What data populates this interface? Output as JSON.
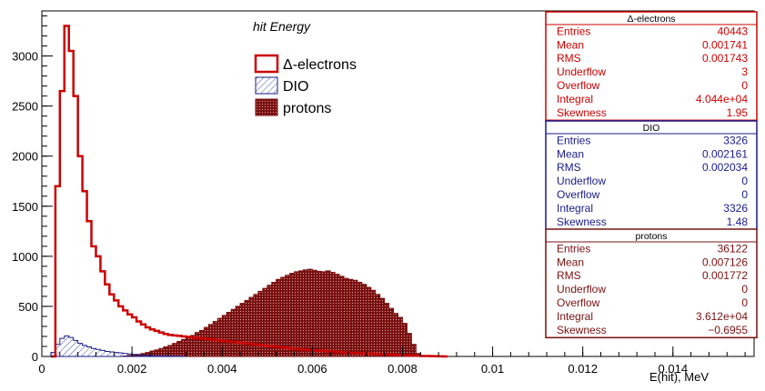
{
  "chart_data": {
    "type": "histogram",
    "title": "hit Energy",
    "xlabel": "E(hit), MeV",
    "ylabel": "",
    "xlim": [
      0,
      0.0158
    ],
    "ylim": [
      0,
      3450
    ],
    "x_ticks": [
      0,
      0.002,
      0.004,
      0.006,
      0.008,
      0.01,
      0.012,
      0.014
    ],
    "x_tick_labels": [
      "0",
      "0.002",
      "0.004",
      "0.006",
      "0.008",
      "0.01",
      "0.012",
      "0.014"
    ],
    "y_ticks": [
      0,
      500,
      1000,
      1500,
      2000,
      2500,
      3000
    ],
    "y_tick_labels": [
      "0",
      "500",
      "1000",
      "1500",
      "2000",
      "2500",
      "3000"
    ],
    "grid": false,
    "legend_position": "top-center",
    "series": [
      {
        "name": "Δ-electrons",
        "color": "#cc0000",
        "style": "outline",
        "bin_edges_start": 0.0002,
        "bin_width": 0.0001,
        "values": [
          0,
          1700,
          2650,
          3300,
          3050,
          2600,
          2000,
          1650,
          1350,
          1100,
          1000,
          850,
          720,
          620,
          560,
          500,
          460,
          420,
          390,
          350,
          320,
          290,
          270,
          255,
          240,
          225,
          215,
          210,
          205,
          200,
          195,
          190,
          185,
          180,
          175,
          170,
          165,
          160,
          155,
          150,
          145,
          140,
          135,
          130,
          125,
          120,
          115,
          110,
          105,
          100,
          95,
          90,
          85,
          80,
          76,
          72,
          68,
          64,
          60,
          57,
          54,
          51,
          48,
          45,
          42,
          40,
          37,
          35,
          33,
          31,
          29,
          27,
          25,
          23,
          21,
          19,
          17,
          15,
          13,
          11,
          9,
          7,
          5,
          4,
          3,
          2,
          1,
          0
        ]
      },
      {
        "name": "DIO",
        "color": "#1a1a8a",
        "style": "hatched",
        "bin_edges_start": 0.0002,
        "bin_width": 0.0001,
        "values": [
          40,
          120,
          180,
          205,
          190,
          160,
          130,
          110,
          95,
          80,
          70,
          60,
          50,
          45,
          40,
          35,
          30,
          25,
          20,
          15,
          12,
          10,
          8,
          6,
          5,
          4,
          3,
          2,
          1,
          0
        ]
      },
      {
        "name": "protons",
        "color": "#7a1010",
        "style": "filled-dotted",
        "bin_edges_start": 0.0018,
        "bin_width": 0.0001,
        "values": [
          5,
          10,
          15,
          20,
          30,
          40,
          55,
          65,
          80,
          95,
          110,
          130,
          150,
          170,
          190,
          210,
          240,
          260,
          290,
          320,
          350,
          380,
          410,
          440,
          470,
          500,
          530,
          560,
          590,
          620,
          650,
          680,
          710,
          740,
          770,
          790,
          810,
          830,
          845,
          855,
          865,
          870,
          860,
          850,
          845,
          855,
          840,
          820,
          800,
          780,
          770,
          760,
          740,
          720,
          690,
          660,
          620,
          580,
          530,
          480,
          430,
          390,
          330,
          230,
          120,
          30,
          0
        ]
      }
    ],
    "stats_boxes": [
      {
        "title": "Δ-electrons",
        "color": "#cc0000",
        "rows": [
          {
            "label": "Entries",
            "value": "40443"
          },
          {
            "label": "Mean",
            "value": "0.001741"
          },
          {
            "label": "RMS",
            "value": "0.001743"
          },
          {
            "label": "Underflow",
            "value": "3"
          },
          {
            "label": "Overflow",
            "value": "0"
          },
          {
            "label": "Integral",
            "value": "4.044e+04"
          },
          {
            "label": "Skewness",
            "value": "1.95"
          }
        ]
      },
      {
        "title": "DIO",
        "color": "#1a1a8a",
        "rows": [
          {
            "label": "Entries",
            "value": "3326"
          },
          {
            "label": "Mean",
            "value": "0.002161"
          },
          {
            "label": "RMS",
            "value": "0.002034"
          },
          {
            "label": "Underflow",
            "value": "0"
          },
          {
            "label": "Overflow",
            "value": "0"
          },
          {
            "label": "Integral",
            "value": "3326"
          },
          {
            "label": "Skewness",
            "value": "1.48"
          }
        ]
      },
      {
        "title": "protons",
        "color": "#7a1010",
        "rows": [
          {
            "label": "Entries",
            "value": "36122"
          },
          {
            "label": "Mean",
            "value": "0.007126"
          },
          {
            "label": "RMS",
            "value": "0.001772"
          },
          {
            "label": "Underflow",
            "value": "0"
          },
          {
            "label": "Overflow",
            "value": "0"
          },
          {
            "label": "Integral",
            "value": "3.612e+04"
          },
          {
            "label": "Skewness",
            "value": "−0.6955"
          }
        ]
      }
    ]
  }
}
